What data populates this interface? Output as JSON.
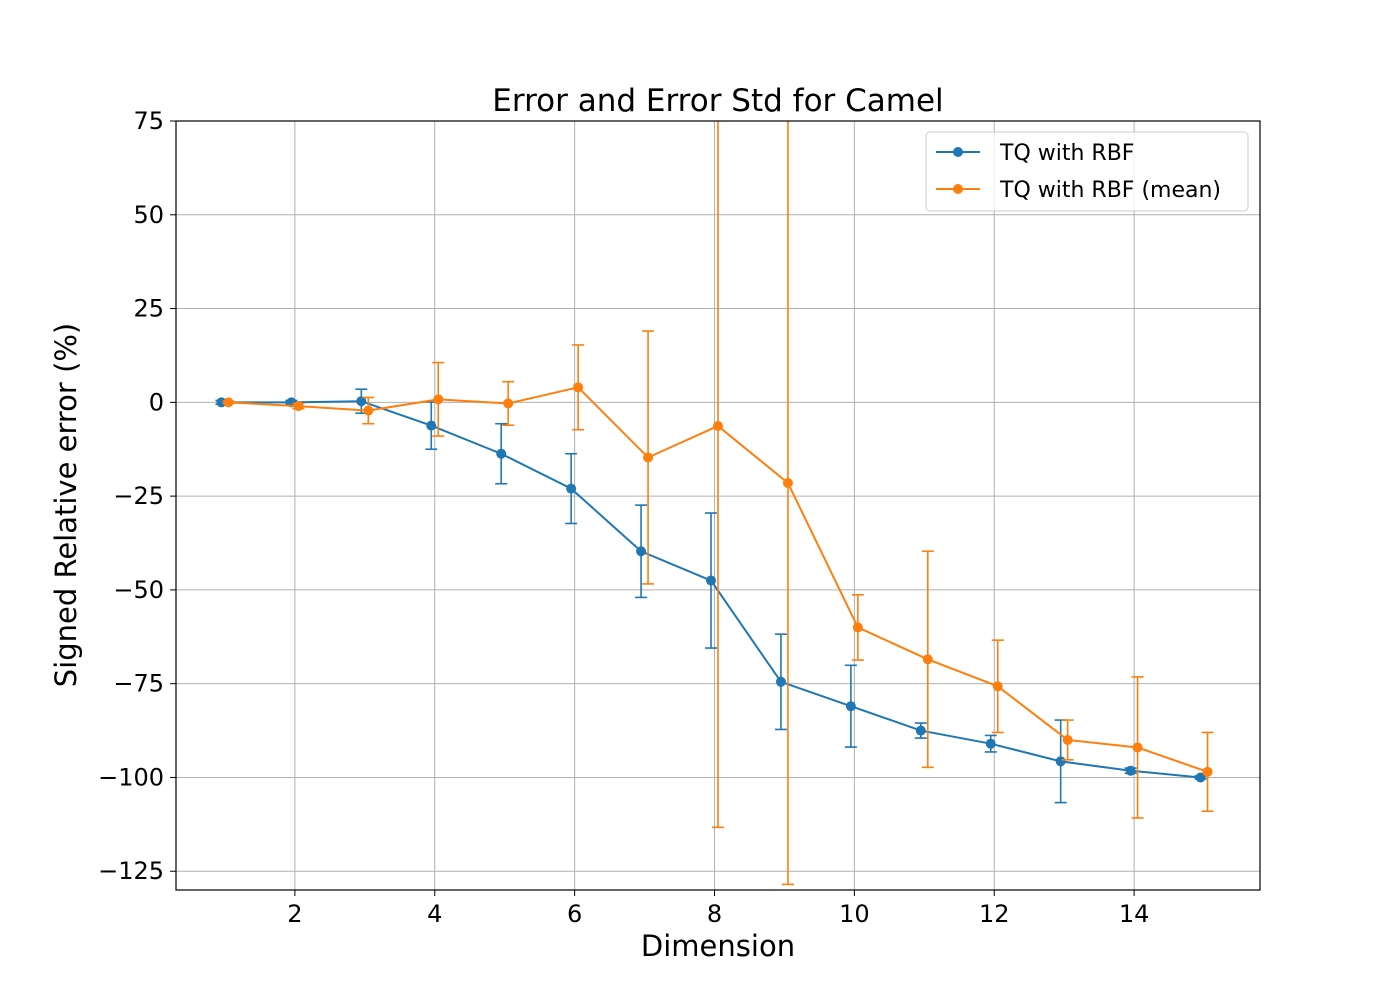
{
  "chart_data": {
    "type": "line",
    "title": "Error and Error Std for Camel",
    "xlabel": "Dimension",
    "ylabel": "Signed Relative error (%)",
    "xlim": [
      0.3,
      15.8
    ],
    "ylim": [
      -130,
      75
    ],
    "xticks": [
      2,
      4,
      6,
      8,
      10,
      12,
      14
    ],
    "yticks": [
      75,
      50,
      25,
      0,
      -25,
      -50,
      -75,
      -100,
      -125
    ],
    "xtick_labels": [
      "2",
      "4",
      "6",
      "8",
      "10",
      "12",
      "14"
    ],
    "ytick_labels": [
      "75",
      "50",
      "25",
      "0",
      "−25",
      "−50",
      "−75",
      "−100",
      "−125"
    ],
    "grid": true,
    "legend_position": "top-right",
    "series": [
      {
        "name": "TQ with RBF",
        "color": "#1f77b4",
        "x": [
          0.95,
          1.95,
          2.95,
          3.95,
          4.95,
          5.95,
          6.95,
          7.95,
          8.95,
          9.95,
          10.95,
          11.95,
          12.95,
          13.95,
          14.95
        ],
        "values": [
          0,
          0,
          0.3,
          -6.2,
          -13.7,
          -23,
          -39.7,
          -47.5,
          -74.5,
          -81,
          -87.5,
          -91,
          -95.7,
          -98.2,
          -100
        ],
        "err": [
          0.5,
          0.5,
          3.2,
          6.3,
          8,
          9.3,
          12.3,
          18,
          12.7,
          10.9,
          2,
          2.2,
          11,
          0.7,
          0.4
        ]
      },
      {
        "name": "TQ with RBF (mean)",
        "color": "#ff7f0e",
        "x": [
          1.05,
          2.05,
          3.05,
          4.05,
          5.05,
          6.05,
          7.05,
          8.05,
          9.05,
          10.05,
          11.05,
          12.05,
          13.05,
          14.05,
          15.05
        ],
        "values": [
          0,
          -1,
          -2.2,
          0.8,
          -0.3,
          4,
          -14.7,
          -6.3,
          -21.5,
          -60,
          -68.5,
          -75.7,
          -90,
          -92,
          -98.5
        ],
        "err": [
          0.3,
          0.7,
          3.5,
          9.8,
          5.8,
          11.3,
          33.7,
          107,
          107,
          8.7,
          28.8,
          12.3,
          5.3,
          18.8,
          10.5
        ]
      }
    ]
  }
}
